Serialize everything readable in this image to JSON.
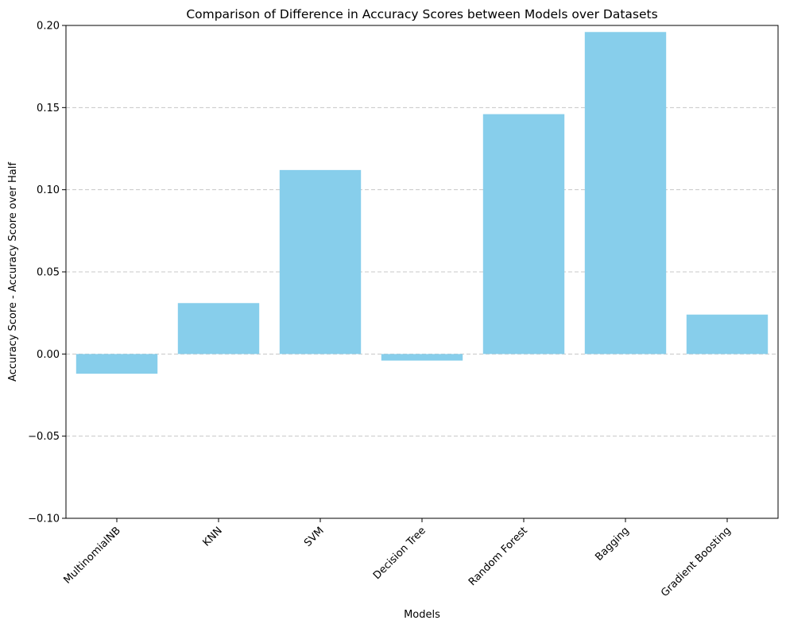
{
  "chart_data": {
    "type": "bar",
    "title": "Comparison of Difference in Accuracy Scores between Models over Datasets",
    "xlabel": "Models",
    "ylabel": "Accuracy Score - Accuracy Score over Half",
    "categories": [
      "MultinomialNB",
      "KNN",
      "SVM",
      "Decision Tree",
      "Random Forest",
      "Bagging",
      "Gradient Boosting"
    ],
    "values": [
      -0.012,
      0.031,
      0.112,
      -0.004,
      0.146,
      0.196,
      0.024
    ],
    "ylim": [
      -0.1,
      0.2
    ],
    "yticks": [
      -0.1,
      -0.05,
      0.0,
      0.05,
      0.1,
      0.15,
      0.2
    ],
    "ytick_labels": [
      "−0.10",
      "−0.05",
      "0.00",
      "0.05",
      "0.10",
      "0.15",
      "0.20"
    ],
    "grid": "y dashed",
    "bar_color": "#87CEEB",
    "grid_color": "#c8c8c8"
  }
}
